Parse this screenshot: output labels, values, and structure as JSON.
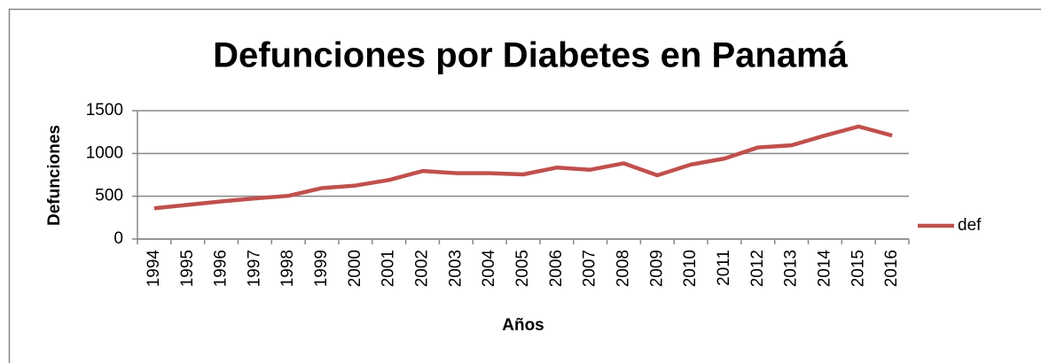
{
  "chart_data": {
    "type": "line",
    "title": "Defunciones por Diabetes en Panamá",
    "x_label": "Años",
    "y_label": "Defunciones",
    "categories": [
      "1994",
      "1995",
      "1996",
      "1997",
      "1998",
      "1999",
      "2000",
      "2001",
      "2002",
      "2003",
      "2004",
      "2005",
      "2006",
      "2007",
      "2008",
      "2009",
      "2010",
      "2011",
      "2012",
      "2013",
      "2014",
      "2015",
      "2016"
    ],
    "series": [
      {
        "name": "def",
        "color": "#c0504d",
        "values": [
          360,
          400,
          440,
          475,
          505,
          595,
          625,
          690,
          795,
          770,
          770,
          755,
          835,
          810,
          885,
          745,
          870,
          940,
          1070,
          1095,
          1210,
          1315,
          1210
        ]
      }
    ],
    "ylim": [
      0,
      1500
    ],
    "yticks": [
      0,
      500,
      1000,
      1500
    ],
    "grid": true,
    "legend": "right"
  }
}
